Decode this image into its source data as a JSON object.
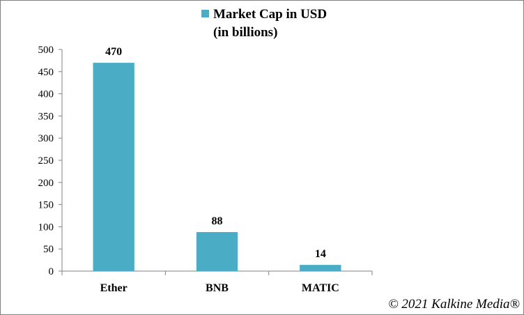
{
  "chart_data": {
    "type": "bar",
    "categories": [
      "Ether",
      "BNB",
      "MATIC"
    ],
    "series": [
      {
        "name": "Market Cap in USD (in billions)",
        "values": [
          470,
          88,
          14
        ]
      }
    ],
    "legend": {
      "line1": "Market Cap in USD",
      "line2": "(in billions)",
      "position": "top"
    },
    "ylim": [
      0,
      500
    ],
    "yticks": [
      0,
      50,
      100,
      150,
      200,
      250,
      300,
      350,
      400,
      450,
      500
    ],
    "grid": false,
    "data_labels": [
      "470",
      "88",
      "14"
    ],
    "color": "#4bacc6"
  },
  "credit": "© 2021 Kalkine Media®"
}
